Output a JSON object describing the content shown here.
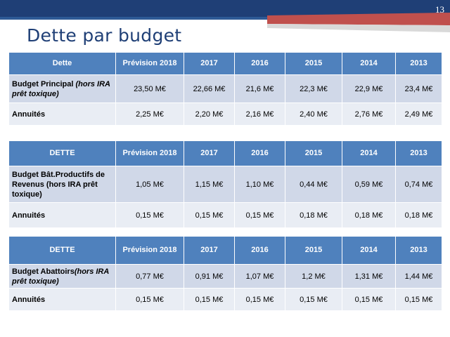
{
  "slide": {
    "number": "13",
    "title": "Dette par budget"
  },
  "colors": {
    "header_blue": "#4f81bd",
    "row_dark": "#d0d8e8",
    "row_light": "#e9edf4",
    "banner_navy": "#1f3f76",
    "banner_red": "#c0504d"
  },
  "tables": [
    {
      "headers": [
        "Dette",
        "Prévision 2018",
        "2017",
        "2016",
        "2015",
        "2014",
        "2013"
      ],
      "rows": [
        {
          "label": "Budget Principal",
          "label_italic": "(hors IRA prêt toxique)",
          "values": [
            "23,50 M€",
            "22,66 M€",
            "21,6 M€",
            "22,3 M€",
            "22,9 M€",
            "23,4 M€"
          ]
        },
        {
          "label": "Annuités",
          "label_italic": "",
          "values": [
            "2,25 M€",
            "2,20 M€",
            "2,16 M€",
            "2,40 M€",
            "2,76 M€",
            "2,49 M€"
          ]
        }
      ]
    },
    {
      "headers": [
        "DETTE",
        "Prévision 2018",
        "2017",
        "2016",
        "2015",
        "2014",
        "2013"
      ],
      "rows": [
        {
          "label": "Budget Bât.Productifs de Revenus   (hors IRA prêt toxique)",
          "label_italic": "",
          "values": [
            "1,05 M€",
            "1,15 M€",
            "1,10 M€",
            "0,44 M€",
            "0,59 M€",
            "0,74 M€"
          ]
        },
        {
          "label": "Annuités",
          "label_italic": "",
          "values": [
            "0,15 M€",
            "0,15 M€",
            "0,15 M€",
            "0,18 M€",
            "0,18 M€",
            "0,18 M€"
          ]
        }
      ]
    },
    {
      "headers": [
        "DETTE",
        "Prévision 2018",
        "2017",
        "2016",
        "2015",
        "2014",
        "2013"
      ],
      "rows": [
        {
          "label": "Budget Abattoirs",
          "label_italic": "(hors IRA prêt toxique)",
          "values": [
            "0,77 M€",
            "0,91 M€",
            "1,07 M€",
            "1,2 M€",
            "1,31 M€",
            "1,44 M€"
          ]
        },
        {
          "label": "Annuités",
          "label_italic": "",
          "values": [
            "0,15 M€",
            "0,15 M€",
            "0,15 M€",
            "0,15 M€",
            "0,15 M€",
            "0,15 M€"
          ]
        }
      ]
    }
  ]
}
